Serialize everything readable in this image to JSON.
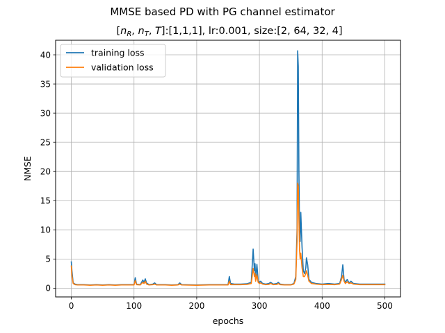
{
  "chart_data": {
    "type": "line",
    "suptitle": "MMSE based PD with PG channel estimator",
    "title": {
      "params_label": "[n_R, n_T, T]",
      "params_value": ":[1,1,1], lr:0.001, size:[2, 64, 32, 4]",
      "sym_1": "n",
      "sub_1": "R",
      "sym_2": "n",
      "sub_2": "T",
      "sym_3": "T"
    },
    "xlabel": "epochs",
    "ylabel": "NMSE",
    "xlim": [
      -25,
      525
    ],
    "ylim": [
      -1.5,
      42.5
    ],
    "xticks": [
      0,
      100,
      200,
      300,
      400,
      500
    ],
    "yticks": [
      0,
      5,
      10,
      15,
      20,
      25,
      30,
      35,
      40
    ],
    "grid": true,
    "legend_position": "upper-left",
    "series": [
      {
        "name": "training loss",
        "color": "#1f77b4",
        "points": [
          [
            0,
            4.5
          ],
          [
            1,
            3.0
          ],
          [
            3,
            0.9
          ],
          [
            6,
            0.7
          ],
          [
            10,
            0.6
          ],
          [
            20,
            0.6
          ],
          [
            30,
            0.55
          ],
          [
            40,
            0.6
          ],
          [
            50,
            0.55
          ],
          [
            60,
            0.6
          ],
          [
            70,
            0.55
          ],
          [
            80,
            0.6
          ],
          [
            90,
            0.6
          ],
          [
            100,
            0.6
          ],
          [
            102,
            1.8
          ],
          [
            104,
            0.7
          ],
          [
            110,
            0.6
          ],
          [
            114,
            1.4
          ],
          [
            116,
            1.0
          ],
          [
            118,
            1.6
          ],
          [
            120,
            0.9
          ],
          [
            124,
            0.6
          ],
          [
            130,
            0.7
          ],
          [
            133,
            0.9
          ],
          [
            136,
            0.6
          ],
          [
            150,
            0.6
          ],
          [
            160,
            0.55
          ],
          [
            170,
            0.6
          ],
          [
            173,
            0.9
          ],
          [
            176,
            0.6
          ],
          [
            200,
            0.55
          ],
          [
            220,
            0.6
          ],
          [
            240,
            0.6
          ],
          [
            250,
            0.6
          ],
          [
            252,
            2.0
          ],
          [
            254,
            0.8
          ],
          [
            260,
            0.7
          ],
          [
            270,
            0.7
          ],
          [
            280,
            0.75
          ],
          [
            287,
            1.0
          ],
          [
            290,
            6.7
          ],
          [
            292,
            3.0
          ],
          [
            293,
            4.2
          ],
          [
            294,
            1.5
          ],
          [
            296,
            4.1
          ],
          [
            298,
            1.3
          ],
          [
            300,
            1.0
          ],
          [
            302,
            1.2
          ],
          [
            305,
            0.8
          ],
          [
            310,
            0.7
          ],
          [
            315,
            0.8
          ],
          [
            318,
            1.0
          ],
          [
            322,
            0.7
          ],
          [
            328,
            0.8
          ],
          [
            330,
            1.0
          ],
          [
            333,
            0.7
          ],
          [
            340,
            0.6
          ],
          [
            350,
            0.6
          ],
          [
            355,
            0.8
          ],
          [
            358,
            2.0
          ],
          [
            360,
            10.0
          ],
          [
            361,
            40.7
          ],
          [
            362,
            38.0
          ],
          [
            363,
            20.0
          ],
          [
            364,
            10.0
          ],
          [
            365,
            8.0
          ],
          [
            366,
            13.0
          ],
          [
            368,
            7.0
          ],
          [
            370,
            3.0
          ],
          [
            372,
            2.5
          ],
          [
            374,
            3.5
          ],
          [
            375,
            5.2
          ],
          [
            377,
            4.0
          ],
          [
            379,
            1.5
          ],
          [
            383,
            1.0
          ],
          [
            390,
            0.8
          ],
          [
            400,
            0.7
          ],
          [
            410,
            0.8
          ],
          [
            420,
            0.7
          ],
          [
            428,
            0.8
          ],
          [
            431,
            2.0
          ],
          [
            433,
            4.0
          ],
          [
            435,
            1.5
          ],
          [
            437,
            1.0
          ],
          [
            440,
            1.5
          ],
          [
            443,
            0.9
          ],
          [
            446,
            1.2
          ],
          [
            450,
            0.8
          ],
          [
            460,
            0.7
          ],
          [
            470,
            0.7
          ],
          [
            480,
            0.7
          ],
          [
            490,
            0.7
          ],
          [
            500,
            0.7
          ]
        ]
      },
      {
        "name": "validation loss",
        "color": "#ff7f0e",
        "points": [
          [
            0,
            3.8
          ],
          [
            1,
            2.2
          ],
          [
            3,
            0.8
          ],
          [
            6,
            0.6
          ],
          [
            10,
            0.55
          ],
          [
            20,
            0.55
          ],
          [
            30,
            0.5
          ],
          [
            40,
            0.55
          ],
          [
            50,
            0.5
          ],
          [
            60,
            0.55
          ],
          [
            70,
            0.5
          ],
          [
            80,
            0.55
          ],
          [
            90,
            0.55
          ],
          [
            100,
            0.55
          ],
          [
            102,
            1.3
          ],
          [
            104,
            0.6
          ],
          [
            110,
            0.55
          ],
          [
            114,
            1.0
          ],
          [
            116,
            0.8
          ],
          [
            118,
            1.2
          ],
          [
            120,
            0.7
          ],
          [
            124,
            0.55
          ],
          [
            130,
            0.6
          ],
          [
            133,
            0.7
          ],
          [
            136,
            0.55
          ],
          [
            150,
            0.55
          ],
          [
            160,
            0.5
          ],
          [
            170,
            0.55
          ],
          [
            173,
            0.7
          ],
          [
            176,
            0.55
          ],
          [
            200,
            0.5
          ],
          [
            220,
            0.55
          ],
          [
            240,
            0.55
          ],
          [
            250,
            0.55
          ],
          [
            252,
            1.2
          ],
          [
            254,
            0.6
          ],
          [
            260,
            0.6
          ],
          [
            270,
            0.6
          ],
          [
            280,
            0.65
          ],
          [
            287,
            0.8
          ],
          [
            290,
            3.4
          ],
          [
            292,
            2.0
          ],
          [
            293,
            2.5
          ],
          [
            294,
            1.2
          ],
          [
            296,
            2.3
          ],
          [
            298,
            1.0
          ],
          [
            300,
            0.8
          ],
          [
            302,
            0.9
          ],
          [
            305,
            0.7
          ],
          [
            310,
            0.6
          ],
          [
            315,
            0.65
          ],
          [
            318,
            0.8
          ],
          [
            322,
            0.6
          ],
          [
            328,
            0.65
          ],
          [
            330,
            0.8
          ],
          [
            333,
            0.6
          ],
          [
            340,
            0.55
          ],
          [
            350,
            0.55
          ],
          [
            355,
            0.7
          ],
          [
            358,
            1.5
          ],
          [
            360,
            8.0
          ],
          [
            361,
            18.0
          ],
          [
            362,
            17.5
          ],
          [
            363,
            12.0
          ],
          [
            364,
            6.5
          ],
          [
            365,
            5.0
          ],
          [
            366,
            6.0
          ],
          [
            368,
            3.5
          ],
          [
            370,
            2.0
          ],
          [
            372,
            2.0
          ],
          [
            374,
            2.5
          ],
          [
            375,
            3.0
          ],
          [
            377,
            2.2
          ],
          [
            379,
            1.2
          ],
          [
            383,
            0.8
          ],
          [
            390,
            0.7
          ],
          [
            400,
            0.6
          ],
          [
            410,
            0.65
          ],
          [
            420,
            0.6
          ],
          [
            428,
            0.7
          ],
          [
            431,
            1.5
          ],
          [
            433,
            2.2
          ],
          [
            435,
            1.2
          ],
          [
            437,
            0.8
          ],
          [
            440,
            1.1
          ],
          [
            443,
            0.8
          ],
          [
            446,
            0.9
          ],
          [
            450,
            0.7
          ],
          [
            460,
            0.6
          ],
          [
            470,
            0.6
          ],
          [
            480,
            0.6
          ],
          [
            490,
            0.6
          ],
          [
            500,
            0.6
          ]
        ]
      }
    ]
  }
}
